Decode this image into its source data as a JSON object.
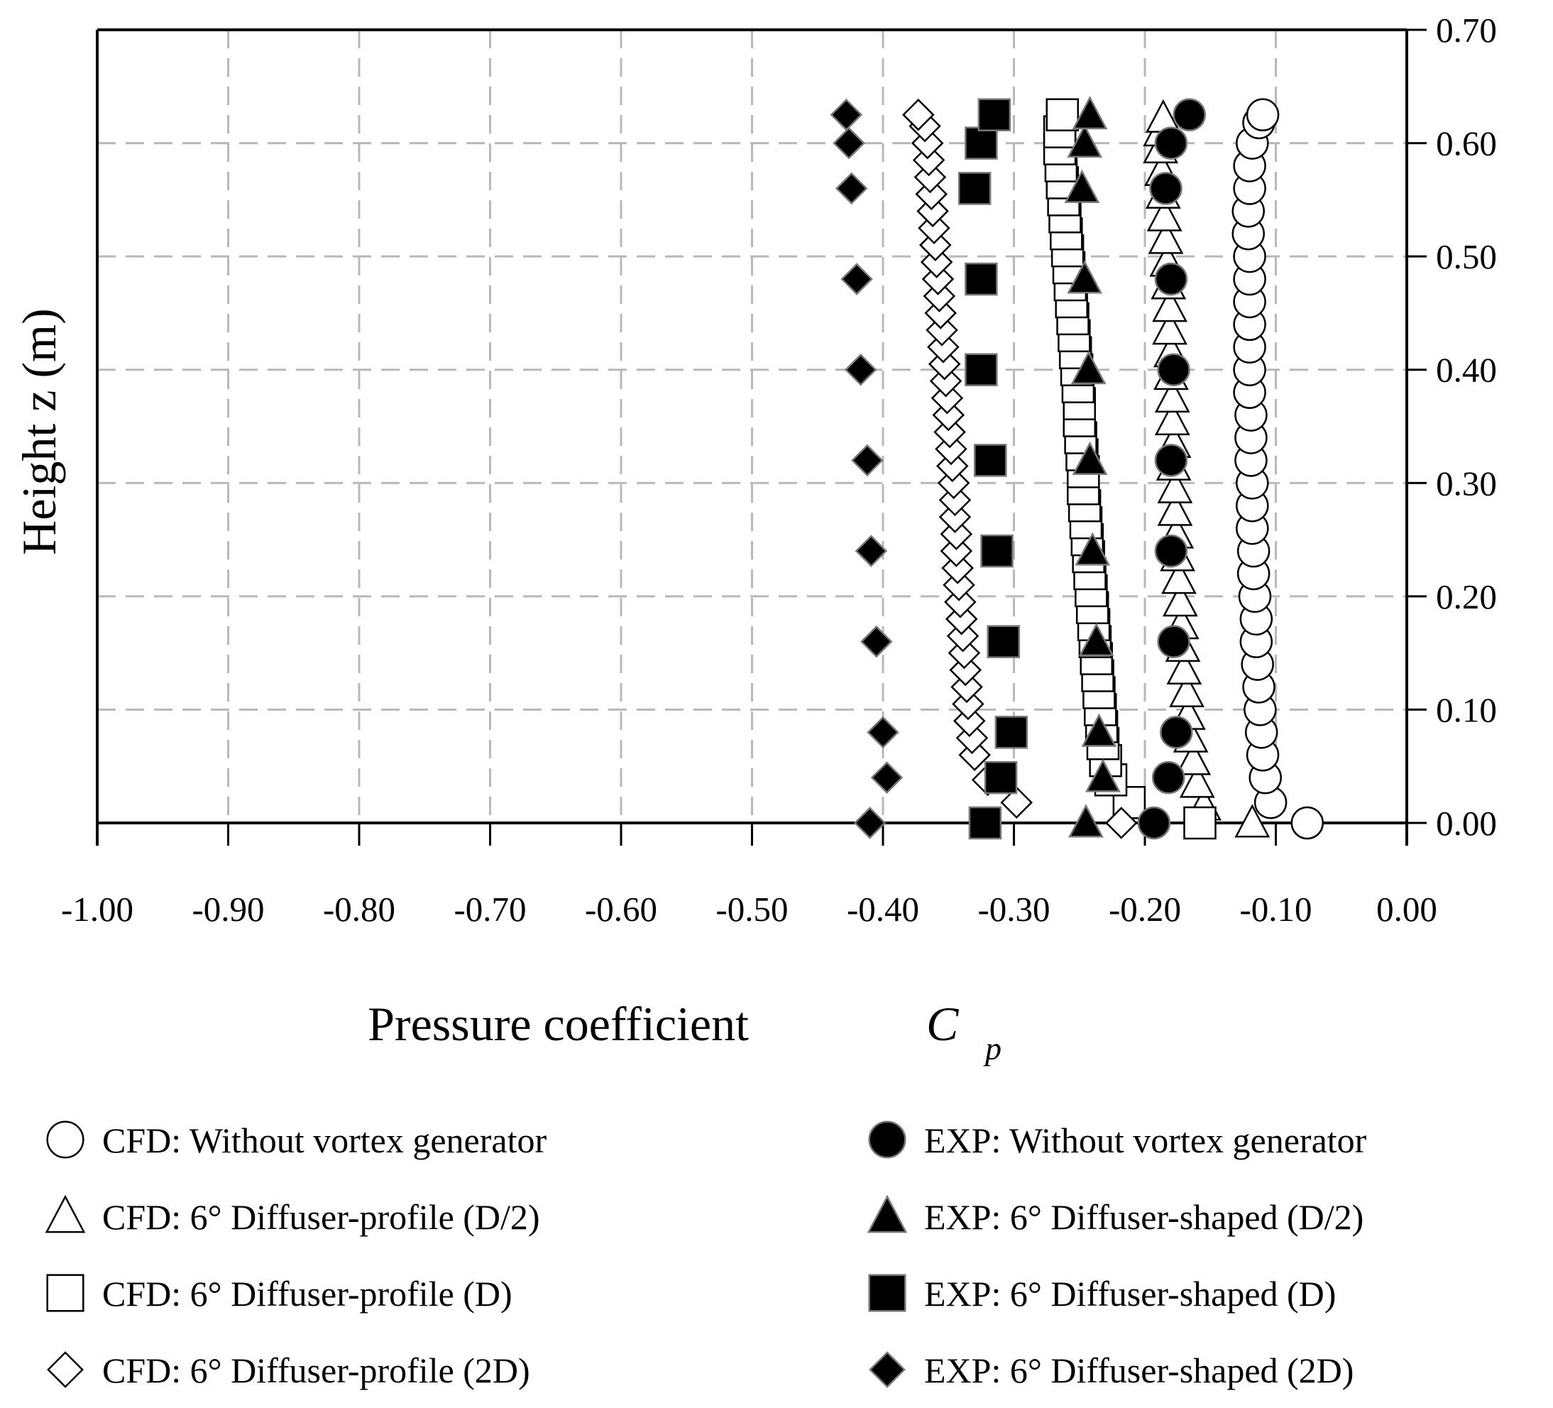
{
  "chart_data": {
    "type": "scatter",
    "title": "",
    "xlabel": "Pressure coefficient",
    "xlabel_symbol": "C",
    "xlabel_subscript": "p",
    "ylabel": "Height z (m)",
    "xlim": [
      -1.0,
      0.0
    ],
    "ylim": [
      0.0,
      0.7
    ],
    "x_ticks": [
      "-1.00",
      "-0.90",
      "-0.80",
      "-0.70",
      "-0.60",
      "-0.50",
      "-0.40",
      "-0.30",
      "-0.20",
      "-0.10",
      "0.00"
    ],
    "x_tick_values": [
      -1.0,
      -0.9,
      -0.8,
      -0.7,
      -0.6,
      -0.5,
      -0.4,
      -0.3,
      -0.2,
      -0.1,
      0.0
    ],
    "y_ticks": [
      "0.00",
      "0.10",
      "0.20",
      "0.30",
      "0.40",
      "0.50",
      "0.60",
      "0.70"
    ],
    "y_tick_values": [
      0.0,
      0.1,
      0.2,
      0.3,
      0.4,
      0.5,
      0.6,
      0.7
    ],
    "y_axis_side": "right",
    "grid": true,
    "legend_position": "bottom",
    "series": [
      {
        "name": "CFD: Without vortex generator",
        "marker": "circle",
        "filled": false,
        "points": [
          [
            -0.076,
            0.0
          ],
          [
            -0.104,
            0.018
          ],
          [
            -0.108,
            0.04
          ],
          [
            -0.11,
            0.06
          ],
          [
            -0.111,
            0.08
          ],
          [
            -0.112,
            0.1
          ],
          [
            -0.113,
            0.12
          ],
          [
            -0.114,
            0.14
          ],
          [
            -0.115,
            0.16
          ],
          [
            -0.115,
            0.18
          ],
          [
            -0.116,
            0.2
          ],
          [
            -0.117,
            0.22
          ],
          [
            -0.117,
            0.24
          ],
          [
            -0.118,
            0.26
          ],
          [
            -0.118,
            0.28
          ],
          [
            -0.118,
            0.3
          ],
          [
            -0.119,
            0.32
          ],
          [
            -0.119,
            0.34
          ],
          [
            -0.119,
            0.36
          ],
          [
            -0.12,
            0.38
          ],
          [
            -0.12,
            0.4
          ],
          [
            -0.12,
            0.42
          ],
          [
            -0.12,
            0.44
          ],
          [
            -0.12,
            0.46
          ],
          [
            -0.12,
            0.48
          ],
          [
            -0.12,
            0.5
          ],
          [
            -0.121,
            0.52
          ],
          [
            -0.121,
            0.54
          ],
          [
            -0.12,
            0.56
          ],
          [
            -0.12,
            0.58
          ],
          [
            -0.118,
            0.6
          ],
          [
            -0.113,
            0.618
          ],
          [
            -0.11,
            0.625
          ]
        ]
      },
      {
        "name": "CFD: 6° Diffuser-profile (D/2)",
        "marker": "triangle",
        "filled": false,
        "points": [
          [
            -0.118,
            0.0
          ],
          [
            -0.155,
            0.015
          ],
          [
            -0.16,
            0.035
          ],
          [
            -0.163,
            0.055
          ],
          [
            -0.165,
            0.075
          ],
          [
            -0.167,
            0.095
          ],
          [
            -0.168,
            0.115
          ],
          [
            -0.17,
            0.135
          ],
          [
            -0.171,
            0.155
          ],
          [
            -0.172,
            0.175
          ],
          [
            -0.173,
            0.195
          ],
          [
            -0.174,
            0.215
          ],
          [
            -0.175,
            0.235
          ],
          [
            -0.176,
            0.255
          ],
          [
            -0.177,
            0.275
          ],
          [
            -0.177,
            0.295
          ],
          [
            -0.178,
            0.315
          ],
          [
            -0.178,
            0.335
          ],
          [
            -0.179,
            0.355
          ],
          [
            -0.179,
            0.375
          ],
          [
            -0.18,
            0.395
          ],
          [
            -0.18,
            0.415
          ],
          [
            -0.181,
            0.435
          ],
          [
            -0.181,
            0.455
          ],
          [
            -0.182,
            0.475
          ],
          [
            -0.183,
            0.495
          ],
          [
            -0.184,
            0.515
          ],
          [
            -0.185,
            0.535
          ],
          [
            -0.186,
            0.555
          ],
          [
            -0.187,
            0.575
          ],
          [
            -0.188,
            0.595
          ],
          [
            -0.188,
            0.61
          ],
          [
            -0.186,
            0.622
          ]
        ]
      },
      {
        "name": "CFD: 6° Diffuser-profile (D)",
        "marker": "square",
        "filled": false,
        "points": [
          [
            -0.158,
            0.0
          ],
          [
            -0.212,
            0.018
          ],
          [
            -0.226,
            0.038
          ],
          [
            -0.23,
            0.055
          ],
          [
            -0.232,
            0.07
          ],
          [
            -0.233,
            0.085
          ],
          [
            -0.234,
            0.1
          ],
          [
            -0.235,
            0.115
          ],
          [
            -0.236,
            0.13
          ],
          [
            -0.237,
            0.145
          ],
          [
            -0.238,
            0.16
          ],
          [
            -0.239,
            0.175
          ],
          [
            -0.24,
            0.19
          ],
          [
            -0.241,
            0.205
          ],
          [
            -0.242,
            0.22
          ],
          [
            -0.243,
            0.235
          ],
          [
            -0.244,
            0.25
          ],
          [
            -0.245,
            0.265
          ],
          [
            -0.246,
            0.28
          ],
          [
            -0.247,
            0.295
          ],
          [
            -0.247,
            0.31
          ],
          [
            -0.248,
            0.325
          ],
          [
            -0.249,
            0.34
          ],
          [
            -0.25,
            0.355
          ],
          [
            -0.25,
            0.37
          ],
          [
            -0.251,
            0.385
          ],
          [
            -0.252,
            0.4
          ],
          [
            -0.253,
            0.415
          ],
          [
            -0.254,
            0.43
          ],
          [
            -0.255,
            0.445
          ],
          [
            -0.256,
            0.46
          ],
          [
            -0.257,
            0.475
          ],
          [
            -0.258,
            0.49
          ],
          [
            -0.259,
            0.505
          ],
          [
            -0.26,
            0.52
          ],
          [
            -0.261,
            0.535
          ],
          [
            -0.262,
            0.55
          ],
          [
            -0.263,
            0.565
          ],
          [
            -0.264,
            0.58
          ],
          [
            -0.265,
            0.595
          ],
          [
            -0.265,
            0.61
          ],
          [
            -0.263,
            0.625
          ]
        ]
      },
      {
        "name": "CFD: 6° Diffuser-profile (2D)",
        "marker": "diamond",
        "filled": false,
        "points": [
          [
            -0.218,
            0.0
          ],
          [
            -0.298,
            0.018
          ],
          [
            -0.32,
            0.038
          ],
          [
            -0.33,
            0.06
          ],
          [
            -0.332,
            0.075
          ],
          [
            -0.334,
            0.09
          ],
          [
            -0.335,
            0.105
          ],
          [
            -0.336,
            0.12
          ],
          [
            -0.337,
            0.135
          ],
          [
            -0.338,
            0.15
          ],
          [
            -0.339,
            0.165
          ],
          [
            -0.34,
            0.18
          ],
          [
            -0.341,
            0.195
          ],
          [
            -0.342,
            0.21
          ],
          [
            -0.343,
            0.225
          ],
          [
            -0.344,
            0.24
          ],
          [
            -0.344,
            0.255
          ],
          [
            -0.345,
            0.27
          ],
          [
            -0.345,
            0.285
          ],
          [
            -0.346,
            0.3
          ],
          [
            -0.347,
            0.315
          ],
          [
            -0.348,
            0.33
          ],
          [
            -0.349,
            0.345
          ],
          [
            -0.35,
            0.36
          ],
          [
            -0.351,
            0.375
          ],
          [
            -0.352,
            0.39
          ],
          [
            -0.353,
            0.405
          ],
          [
            -0.354,
            0.42
          ],
          [
            -0.355,
            0.435
          ],
          [
            -0.356,
            0.45
          ],
          [
            -0.357,
            0.465
          ],
          [
            -0.358,
            0.48
          ],
          [
            -0.359,
            0.495
          ],
          [
            -0.36,
            0.51
          ],
          [
            -0.361,
            0.525
          ],
          [
            -0.362,
            0.54
          ],
          [
            -0.363,
            0.555
          ],
          [
            -0.364,
            0.57
          ],
          [
            -0.365,
            0.585
          ],
          [
            -0.366,
            0.6
          ],
          [
            -0.368,
            0.615
          ],
          [
            -0.373,
            0.625
          ]
        ]
      },
      {
        "name": "EXP: Without vortex generator",
        "marker": "circle",
        "filled": true,
        "points": [
          [
            -0.193,
            0.0
          ],
          [
            -0.182,
            0.04
          ],
          [
            -0.176,
            0.08
          ],
          [
            -0.178,
            0.16
          ],
          [
            -0.18,
            0.24
          ],
          [
            -0.18,
            0.32
          ],
          [
            -0.178,
            0.4
          ],
          [
            -0.18,
            0.48
          ],
          [
            -0.184,
            0.56
          ],
          [
            -0.18,
            0.6
          ],
          [
            -0.166,
            0.625
          ]
        ]
      },
      {
        "name": "EXP: 6° Diffuser-shaped (D/2)",
        "marker": "triangle",
        "filled": true,
        "points": [
          [
            -0.245,
            0.0
          ],
          [
            -0.232,
            0.04
          ],
          [
            -0.235,
            0.08
          ],
          [
            -0.237,
            0.16
          ],
          [
            -0.24,
            0.24
          ],
          [
            -0.242,
            0.32
          ],
          [
            -0.243,
            0.4
          ],
          [
            -0.246,
            0.48
          ],
          [
            -0.248,
            0.56
          ],
          [
            -0.246,
            0.6
          ],
          [
            -0.242,
            0.625
          ]
        ]
      },
      {
        "name": "EXP: 6° Diffuser-shaped (D)",
        "marker": "square",
        "filled": true,
        "points": [
          [
            -0.322,
            0.0
          ],
          [
            -0.31,
            0.04
          ],
          [
            -0.302,
            0.08
          ],
          [
            -0.308,
            0.16
          ],
          [
            -0.313,
            0.24
          ],
          [
            -0.318,
            0.32
          ],
          [
            -0.325,
            0.4
          ],
          [
            -0.325,
            0.48
          ],
          [
            -0.33,
            0.56
          ],
          [
            -0.325,
            0.6
          ],
          [
            -0.315,
            0.625
          ]
        ]
      },
      {
        "name": "EXP: 6° Diffuser-shaped (2D)",
        "marker": "diamond",
        "filled": true,
        "points": [
          [
            -0.41,
            0.0
          ],
          [
            -0.397,
            0.04
          ],
          [
            -0.4,
            0.08
          ],
          [
            -0.405,
            0.16
          ],
          [
            -0.409,
            0.24
          ],
          [
            -0.412,
            0.32
          ],
          [
            -0.417,
            0.4
          ],
          [
            -0.42,
            0.48
          ],
          [
            -0.424,
            0.56
          ],
          [
            -0.426,
            0.6
          ],
          [
            -0.428,
            0.625
          ]
        ]
      }
    ]
  }
}
